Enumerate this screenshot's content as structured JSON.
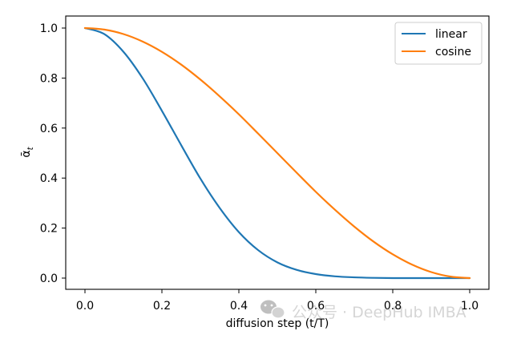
{
  "chart_data": {
    "type": "line",
    "title": "",
    "xlabel": "diffusion step (t/T)",
    "ylabel": "ᾱ",
    "ylabel_subscript": "t",
    "xlim": [
      0.0,
      1.0
    ],
    "ylim": [
      0.0,
      1.0
    ],
    "xticks": [
      "0.0",
      "0.2",
      "0.4",
      "0.6",
      "0.8",
      "1.0"
    ],
    "yticks": [
      "0.0",
      "0.2",
      "0.4",
      "0.6",
      "0.8",
      "1.0"
    ],
    "grid": false,
    "legend_position": "top-right",
    "x": [
      0.0,
      0.05,
      0.1,
      0.15,
      0.2,
      0.25,
      0.3,
      0.35,
      0.4,
      0.45,
      0.5,
      0.55,
      0.6,
      0.65,
      0.7,
      0.75,
      0.8,
      0.85,
      0.9,
      0.95,
      1.0
    ],
    "series": [
      {
        "name": "linear",
        "color": "#1f77b4",
        "values": [
          1.0,
          0.976,
          0.905,
          0.799,
          0.669,
          0.532,
          0.398,
          0.281,
          0.184,
          0.112,
          0.063,
          0.033,
          0.016,
          0.007,
          0.003,
          0.001,
          0.0,
          0.0,
          0.0,
          0.0,
          0.0
        ]
      },
      {
        "name": "cosine",
        "color": "#ff7f0e",
        "values": [
          1.0,
          0.994,
          0.976,
          0.946,
          0.905,
          0.854,
          0.794,
          0.727,
          0.655,
          0.578,
          0.5,
          0.422,
          0.345,
          0.273,
          0.206,
          0.146,
          0.095,
          0.054,
          0.024,
          0.006,
          0.0
        ]
      }
    ]
  },
  "watermark": {
    "text": "公众号 · DeepHub IMBA",
    "icon": "wechat-icon"
  }
}
